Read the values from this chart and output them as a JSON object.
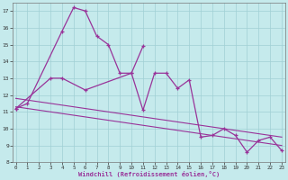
{
  "background_color": "#c5eaec",
  "grid_color": "#a0d0d5",
  "line_color": "#993399",
  "xlabel": "Windchill (Refroidissement éolien,°C)",
  "series1_x": [
    0,
    1,
    4,
    5,
    6,
    7,
    8,
    9,
    10,
    11
  ],
  "series1_y": [
    11.2,
    11.5,
    15.8,
    17.2,
    17.0,
    15.5,
    15.0,
    13.3,
    13.3,
    14.9
  ],
  "series2_x": [
    0,
    3,
    4,
    6,
    10,
    11,
    12,
    13,
    14,
    15,
    16,
    17,
    18,
    19,
    20,
    21,
    22,
    23
  ],
  "series2_y": [
    11.2,
    13.0,
    13.0,
    12.3,
    13.3,
    11.1,
    13.3,
    13.3,
    12.4,
    12.9,
    9.5,
    9.6,
    10.0,
    9.6,
    8.6,
    9.3,
    9.5,
    8.7
  ],
  "trend1_x": [
    0,
    23
  ],
  "trend1_y": [
    11.8,
    9.5
  ],
  "trend2_x": [
    0,
    23
  ],
  "trend2_y": [
    11.3,
    9.0
  ],
  "ylim": [
    8,
    17.5
  ],
  "xlim": [
    -0.3,
    23.3
  ],
  "xticks": [
    0,
    1,
    2,
    3,
    4,
    5,
    6,
    7,
    8,
    9,
    10,
    11,
    12,
    13,
    14,
    15,
    16,
    17,
    18,
    19,
    20,
    21,
    22,
    23
  ],
  "yticks": [
    8,
    9,
    10,
    11,
    12,
    13,
    14,
    15,
    16,
    17
  ]
}
